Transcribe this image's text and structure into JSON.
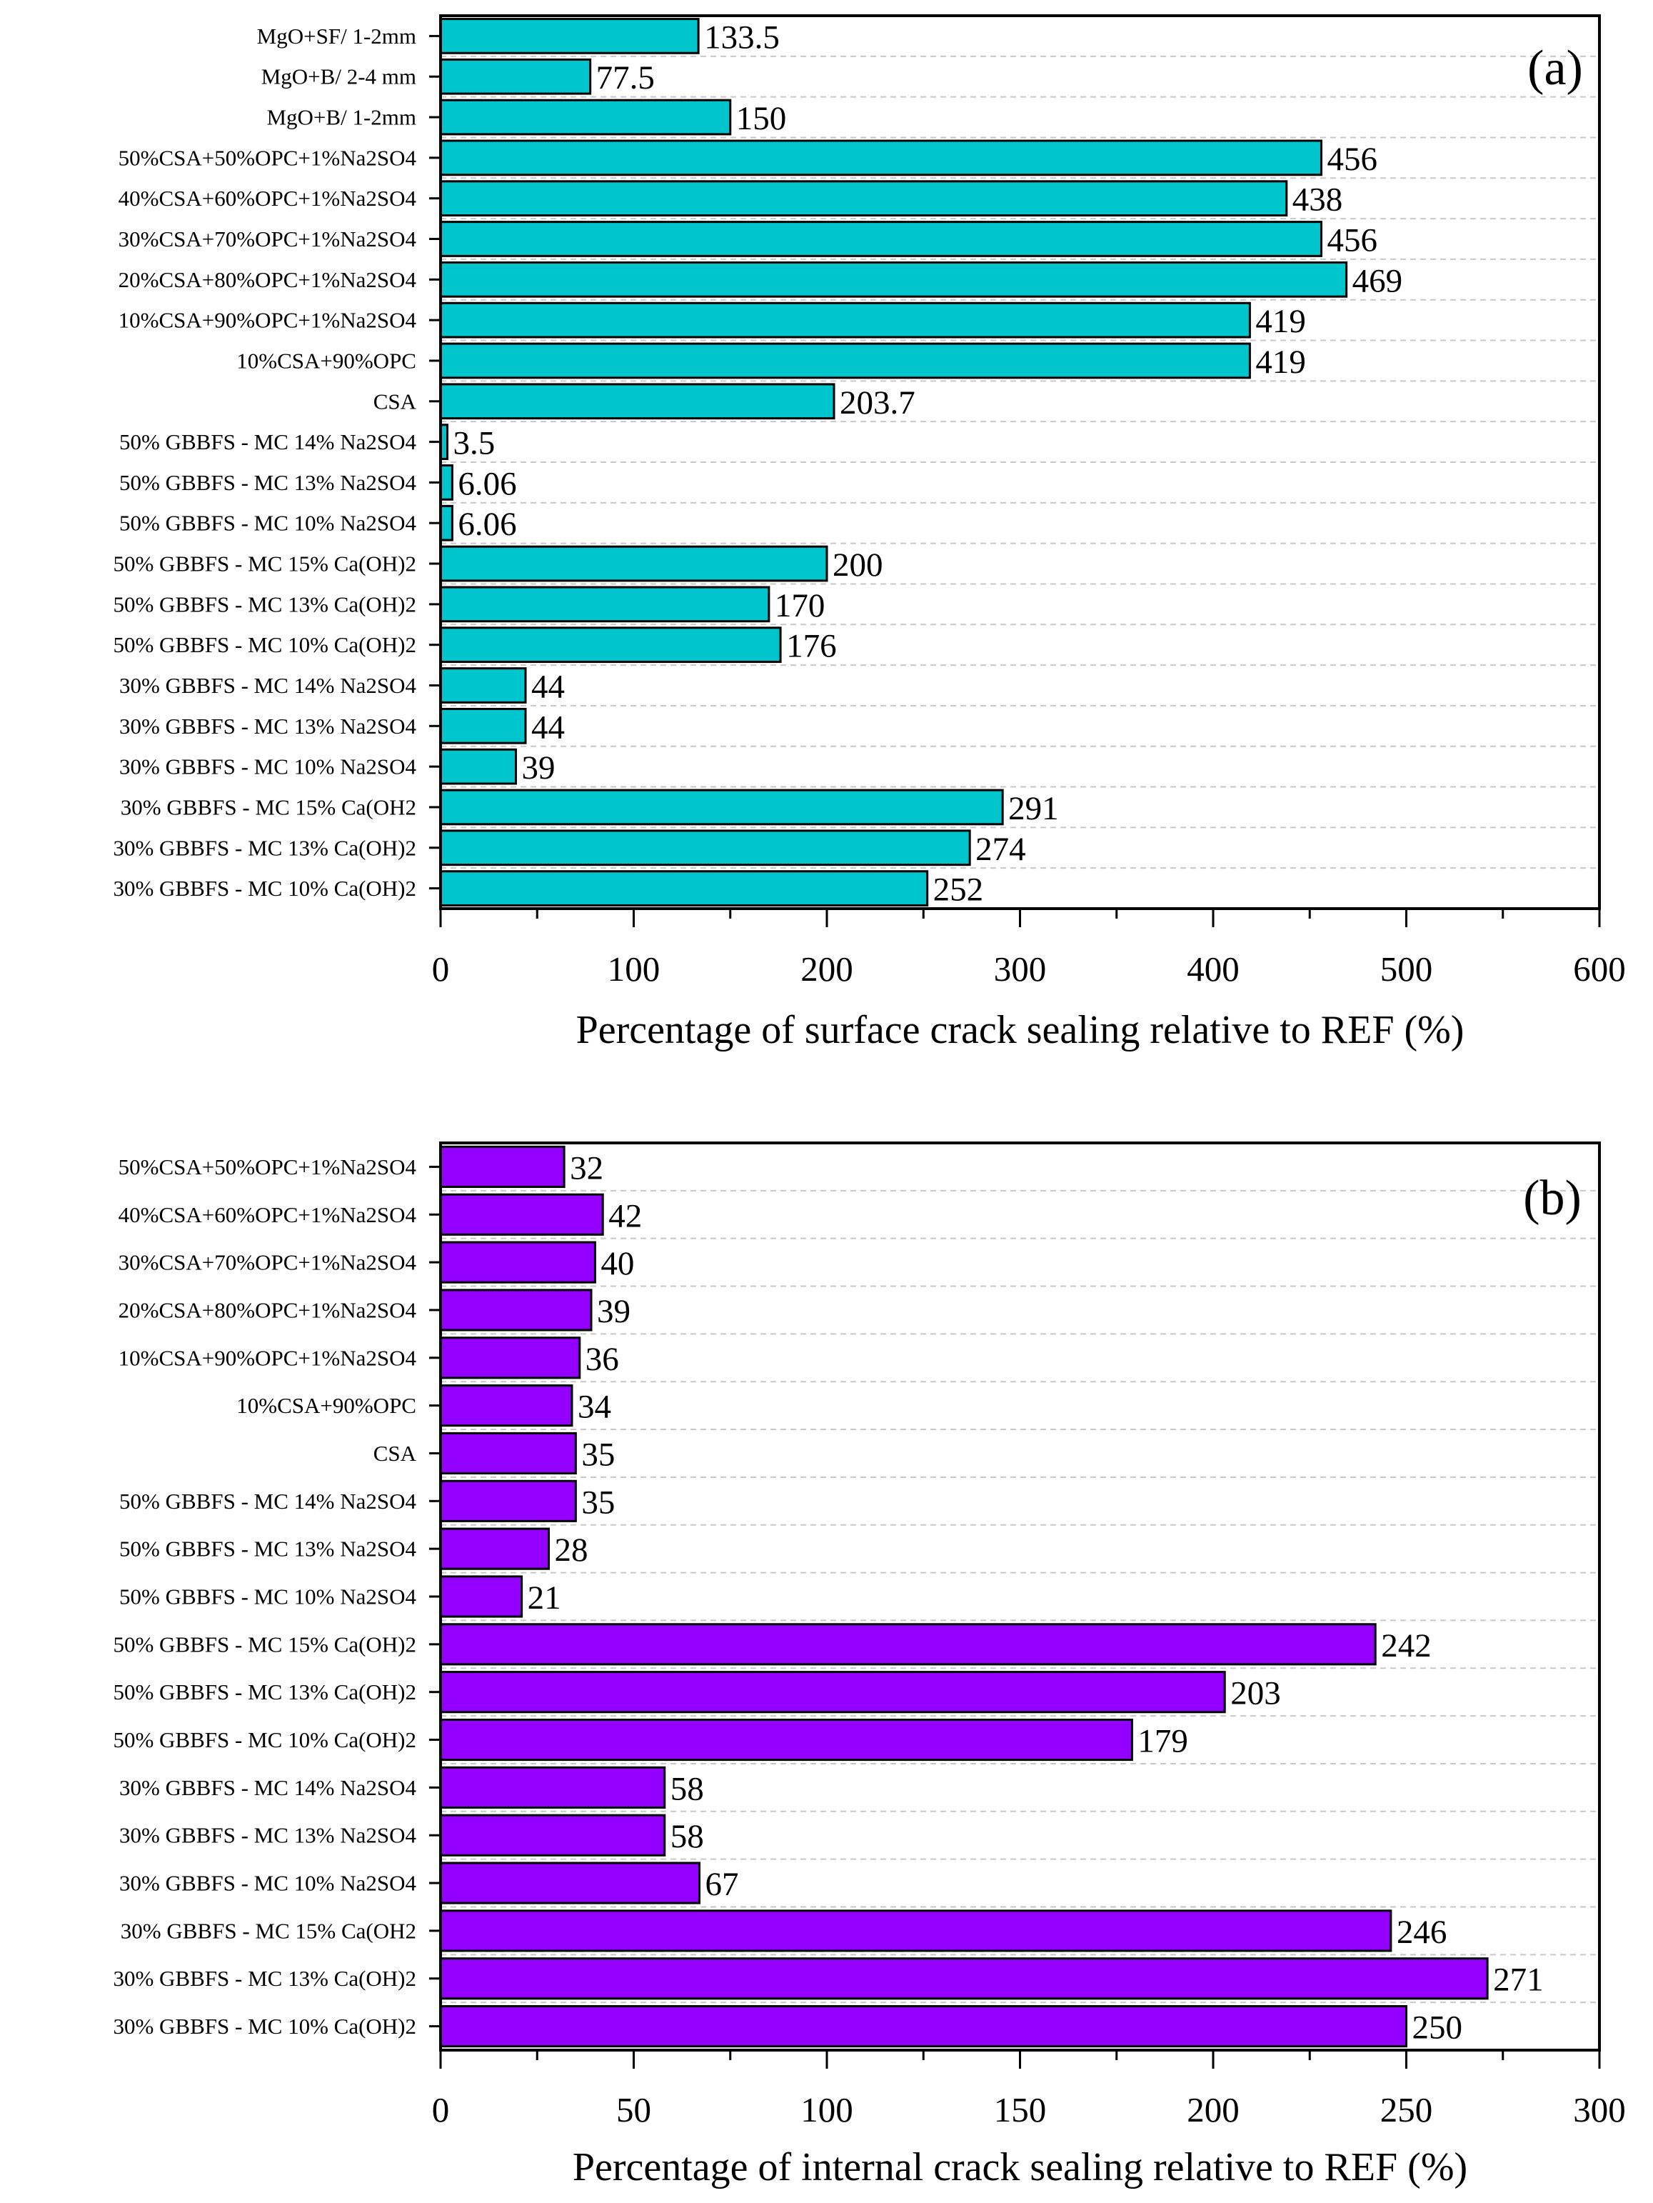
{
  "chart_data": [
    {
      "type": "bar",
      "orientation": "horizontal",
      "panel_label": "(a)",
      "xlabel": "Percentage of surface crack sealing relative to REF (%)",
      "ylabel": "",
      "xlim": [
        0,
        600
      ],
      "xticks": [
        0,
        100,
        200,
        300,
        400,
        500,
        600
      ],
      "grid": "horizontal dashed",
      "bar_color": "#00C5CD",
      "categories": [
        "MgO+SF/ 1-2mm",
        "MgO+B/ 2-4 mm",
        "MgO+B/ 1-2mm",
        "50%CSA+50%OPC+1%Na2SO4",
        "40%CSA+60%OPC+1%Na2SO4",
        "30%CSA+70%OPC+1%Na2SO4",
        "20%CSA+80%OPC+1%Na2SO4",
        "10%CSA+90%OPC+1%Na2SO4",
        "10%CSA+90%OPC",
        "CSA",
        "50% GBBFS - MC 14% Na2SO4",
        "50% GBBFS - MC 13% Na2SO4",
        "50% GBBFS - MC 10% Na2SO4",
        "50% GBBFS - MC  15% Ca(OH)2",
        "50% GBBFS - MC 13% Ca(OH)2",
        "50% GBBFS - MC 10% Ca(OH)2",
        "30% GBBFS - MC 14% Na2SO4",
        "30% GBBFS - MC 13% Na2SO4",
        "30% GBBFS - MC 10% Na2SO4",
        "30% GBBFS - MC 15% Ca(OH2",
        "30% GBBFS - MC 13% Ca(OH)2",
        "30% GBBFS - MC 10% Ca(OH)2"
      ],
      "values": [
        133.5,
        77.5,
        150,
        456,
        438,
        456,
        469,
        419,
        419,
        203.7,
        3.5,
        6.06,
        6.06,
        200,
        170,
        176,
        44,
        44,
        39,
        291,
        274,
        252
      ],
      "value_labels": [
        "133.5",
        "77.5",
        "150",
        "456",
        "438",
        "456",
        "469",
        "419",
        "419",
        "203.7",
        "3.5",
        "6.06",
        "6.06",
        "200",
        "170",
        "176",
        "44",
        "44",
        "39",
        "291",
        "274",
        "252"
      ]
    },
    {
      "type": "bar",
      "orientation": "horizontal",
      "panel_label": "(b)",
      "xlabel": "Percentage of internal crack sealing relative to REF (%)",
      "ylabel": "",
      "xlim": [
        0,
        300
      ],
      "xticks": [
        0,
        50,
        100,
        150,
        200,
        250,
        300
      ],
      "grid": "horizontal dashed",
      "bar_color": "#9400FF",
      "categories": [
        "50%CSA+50%OPC+1%Na2SO4",
        "40%CSA+60%OPC+1%Na2SO4",
        "30%CSA+70%OPC+1%Na2SO4",
        "20%CSA+80%OPC+1%Na2SO4",
        "10%CSA+90%OPC+1%Na2SO4",
        "10%CSA+90%OPC",
        "CSA",
        "50% GBBFS - MC 14% Na2SO4",
        "50% GBBFS - MC 13% Na2SO4",
        "50% GBBFS - MC 10% Na2SO4",
        "50% GBBFS - MC  15% Ca(OH)2",
        "50% GBBFS - MC 13% Ca(OH)2",
        "50% GBBFS - MC 10% Ca(OH)2",
        "30% GBBFS - MC 14% Na2SO4",
        "30% GBBFS - MC 13% Na2SO4",
        "30% GBBFS - MC 10% Na2SO4",
        "30% GBBFS - MC 15% Ca(OH2",
        "30% GBBFS - MC 13% Ca(OH)2",
        "30% GBBFS - MC 10% Ca(OH)2"
      ],
      "values": [
        32,
        42,
        40,
        39,
        36,
        34,
        35,
        35,
        28,
        21,
        242,
        203,
        179,
        58,
        58,
        67,
        246,
        271,
        250
      ],
      "value_labels": [
        "32",
        "42",
        "40",
        "39",
        "36",
        "34",
        "35",
        "35",
        "28",
        "21",
        "242",
        "203",
        "179",
        "58",
        "58",
        "67",
        "246",
        "271",
        "250"
      ]
    }
  ]
}
